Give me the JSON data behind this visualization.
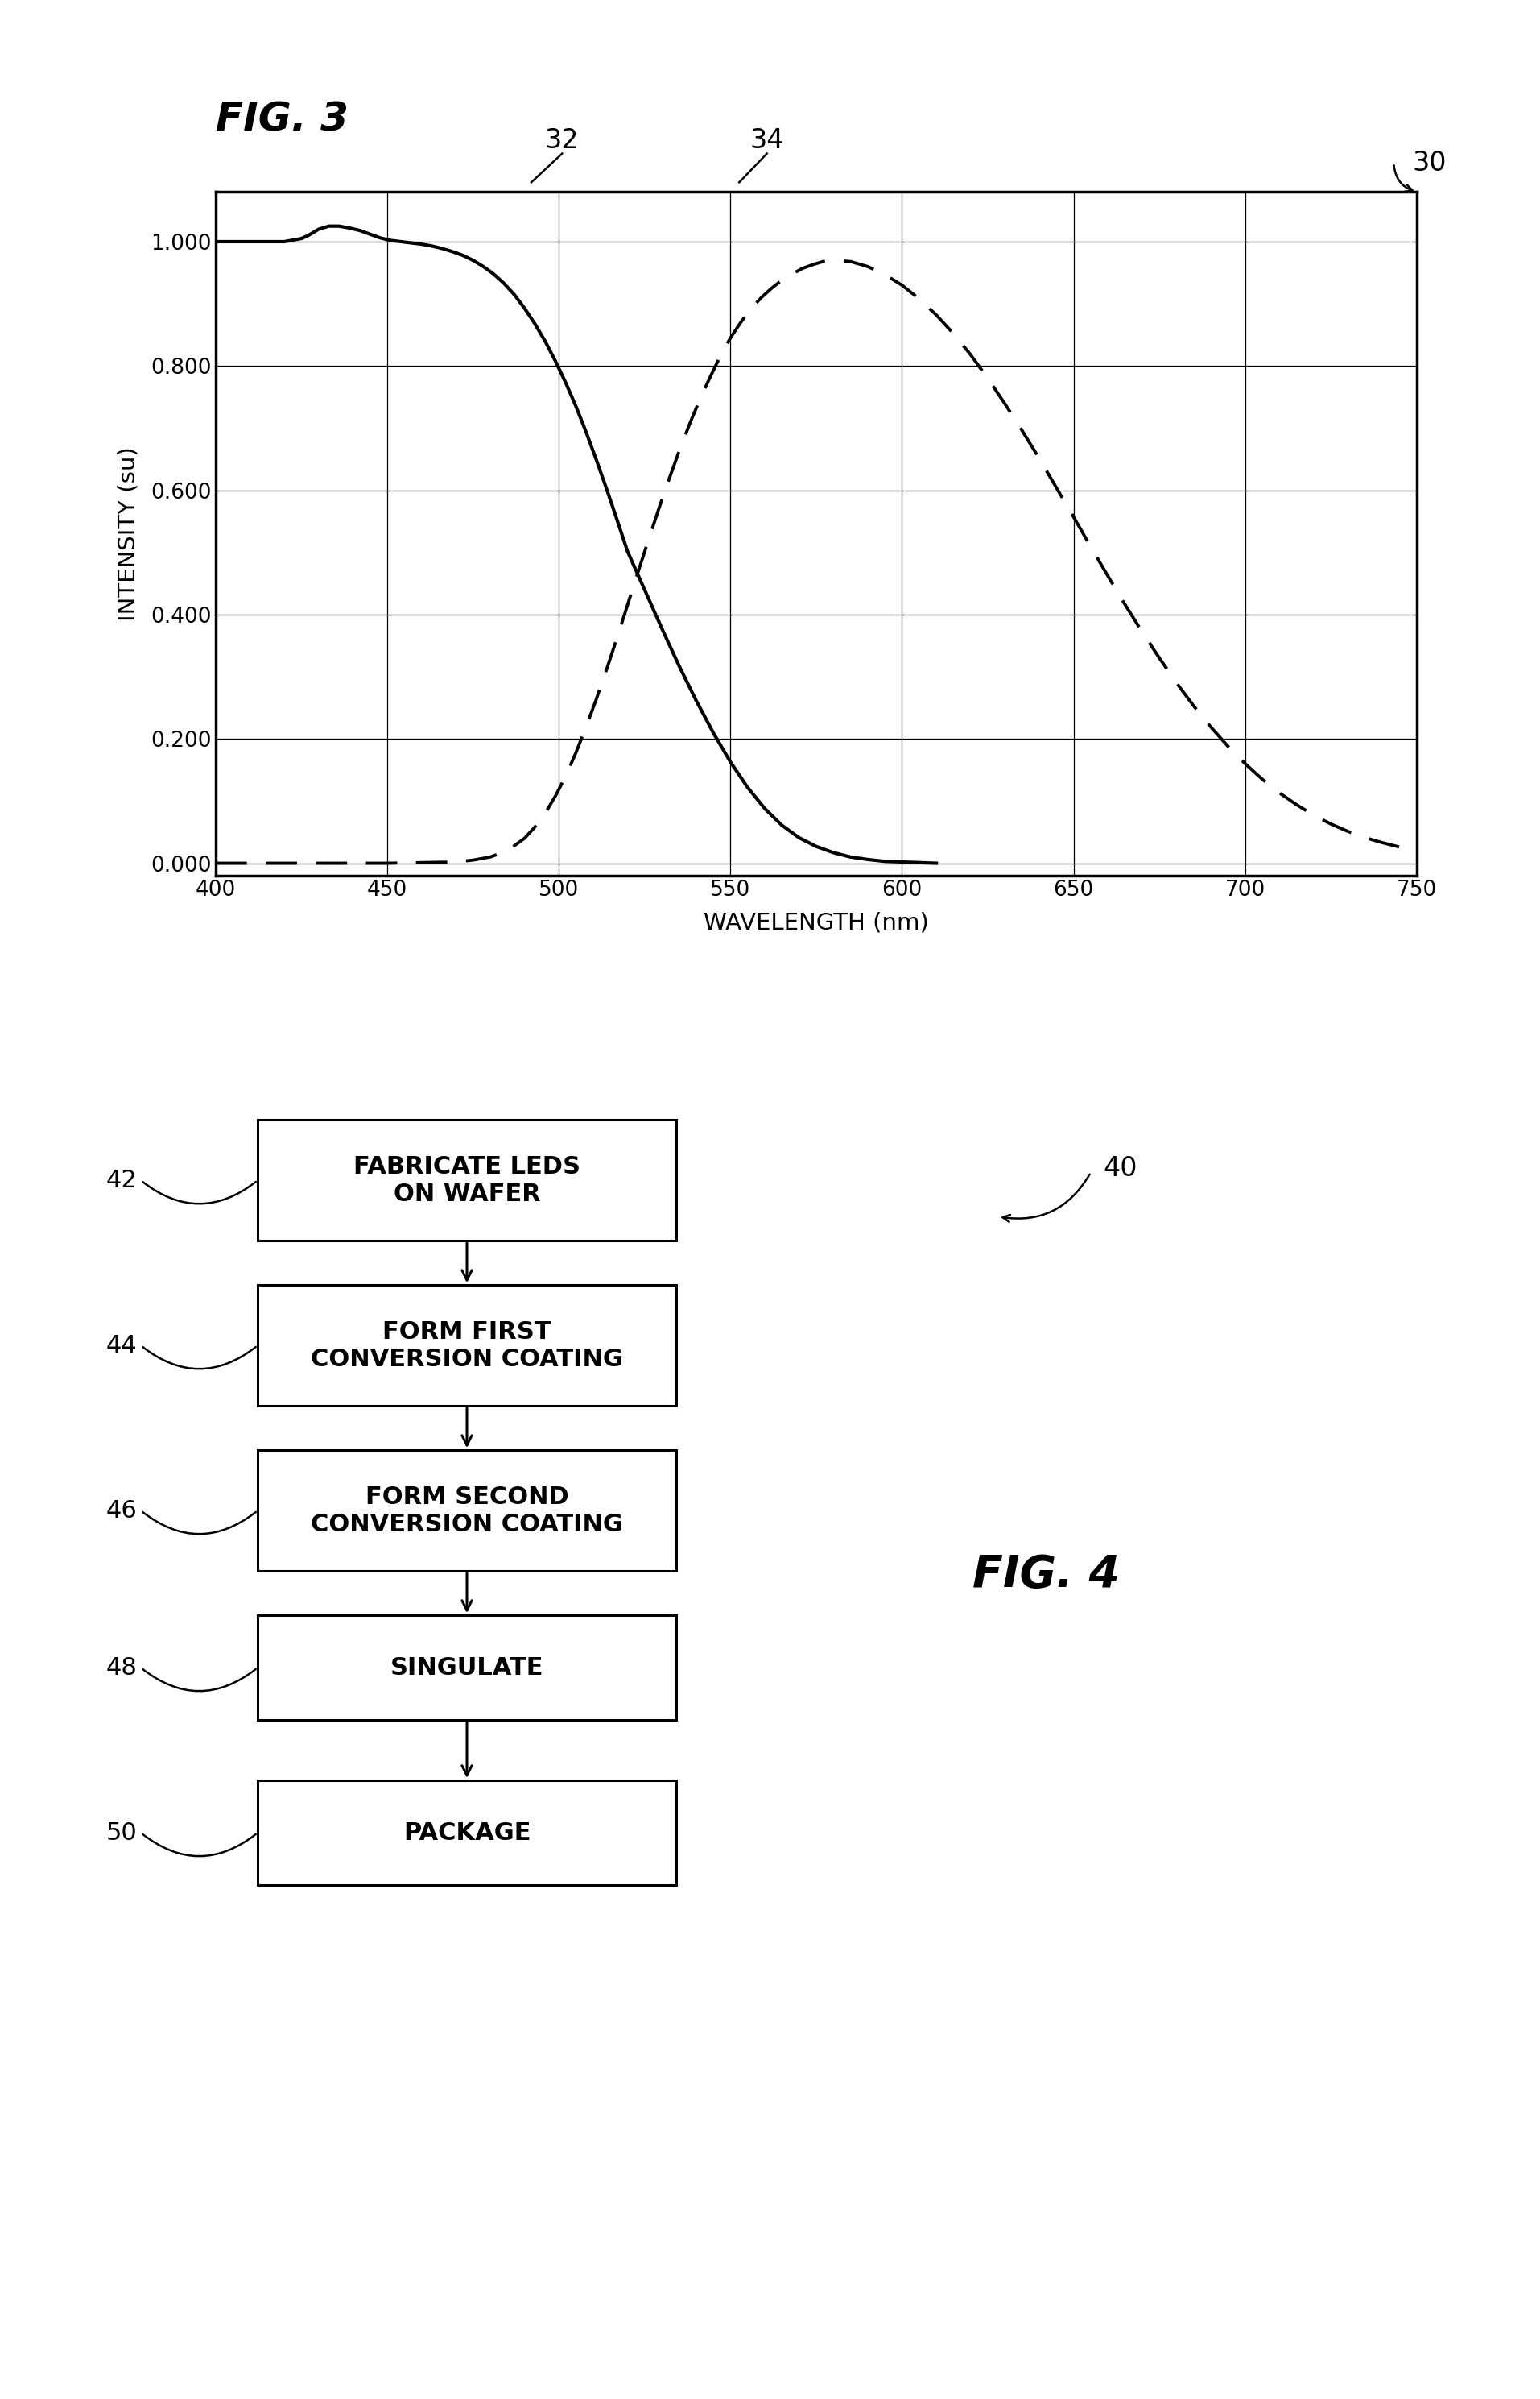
{
  "fig3_title": "FIG. 3",
  "fig4_title": "FIG. 4",
  "label30": "30",
  "label32": "32",
  "label34": "34",
  "xlabel": "WAVELENGTH (nm)",
  "ylabel": "INTENSITY (su)",
  "xlim": [
    400,
    750
  ],
  "ylim": [
    -0.02,
    1.08
  ],
  "xticks": [
    400,
    450,
    500,
    550,
    600,
    650,
    700,
    750
  ],
  "yticks": [
    0.0,
    0.2,
    0.4,
    0.6,
    0.8,
    1.0
  ],
  "background_color": "#ffffff",
  "line_color": "#000000",
  "curve32_x": [
    400,
    405,
    410,
    415,
    420,
    425,
    427,
    430,
    433,
    436,
    439,
    442,
    445,
    448,
    451,
    454,
    457,
    460,
    463,
    466,
    469,
    472,
    475,
    478,
    481,
    484,
    487,
    490,
    493,
    496,
    499,
    502,
    505,
    508,
    511,
    514,
    517,
    520,
    525,
    530,
    535,
    540,
    545,
    550,
    555,
    560,
    565,
    570,
    575,
    580,
    585,
    590,
    595,
    600,
    605,
    610
  ],
  "curve32_y": [
    1.0,
    1.0,
    1.0,
    1.0,
    1.0,
    1.005,
    1.01,
    1.02,
    1.025,
    1.025,
    1.022,
    1.018,
    1.012,
    1.006,
    1.002,
    1.0,
    0.998,
    0.996,
    0.993,
    0.989,
    0.984,
    0.978,
    0.97,
    0.96,
    0.948,
    0.933,
    0.915,
    0.893,
    0.868,
    0.84,
    0.808,
    0.773,
    0.735,
    0.693,
    0.648,
    0.601,
    0.552,
    0.502,
    0.44,
    0.378,
    0.318,
    0.262,
    0.21,
    0.163,
    0.122,
    0.088,
    0.061,
    0.041,
    0.027,
    0.017,
    0.01,
    0.006,
    0.003,
    0.002,
    0.001,
    0.0
  ],
  "curve34_x": [
    400,
    450,
    470,
    475,
    480,
    485,
    490,
    493,
    496,
    499,
    502,
    505,
    508,
    511,
    514,
    517,
    520,
    523,
    526,
    529,
    532,
    535,
    538,
    541,
    544,
    547,
    550,
    553,
    556,
    559,
    562,
    565,
    568,
    571,
    574,
    577,
    580,
    585,
    590,
    595,
    600,
    605,
    610,
    615,
    620,
    625,
    630,
    635,
    640,
    645,
    650,
    655,
    660,
    665,
    670,
    675,
    680,
    685,
    690,
    695,
    700,
    705,
    710,
    715,
    720,
    725,
    730,
    735,
    740,
    745,
    750
  ],
  "curve34_y": [
    0.0,
    0.0,
    0.002,
    0.005,
    0.01,
    0.02,
    0.04,
    0.058,
    0.08,
    0.108,
    0.14,
    0.178,
    0.22,
    0.265,
    0.313,
    0.363,
    0.415,
    0.467,
    0.518,
    0.568,
    0.616,
    0.662,
    0.705,
    0.745,
    0.781,
    0.815,
    0.845,
    0.87,
    0.892,
    0.91,
    0.925,
    0.938,
    0.948,
    0.957,
    0.963,
    0.968,
    0.97,
    0.968,
    0.96,
    0.947,
    0.93,
    0.908,
    0.882,
    0.852,
    0.818,
    0.78,
    0.739,
    0.696,
    0.651,
    0.604,
    0.557,
    0.509,
    0.462,
    0.416,
    0.372,
    0.33,
    0.29,
    0.253,
    0.219,
    0.188,
    0.16,
    0.135,
    0.113,
    0.094,
    0.077,
    0.063,
    0.051,
    0.041,
    0.033,
    0.026,
    0.02
  ],
  "flowchart_boxes": [
    {
      "label": "FABRICATE LEDS\nON WAFER",
      "ref": "42"
    },
    {
      "label": "FORM FIRST\nCONVERSION COATING",
      "ref": "44"
    },
    {
      "label": "FORM SECOND\nCONVERSION COATING",
      "ref": "46"
    },
    {
      "label": "SINGULATE",
      "ref": "48"
    },
    {
      "label": "PACKAGE",
      "ref": "50"
    }
  ],
  "label40": "40"
}
